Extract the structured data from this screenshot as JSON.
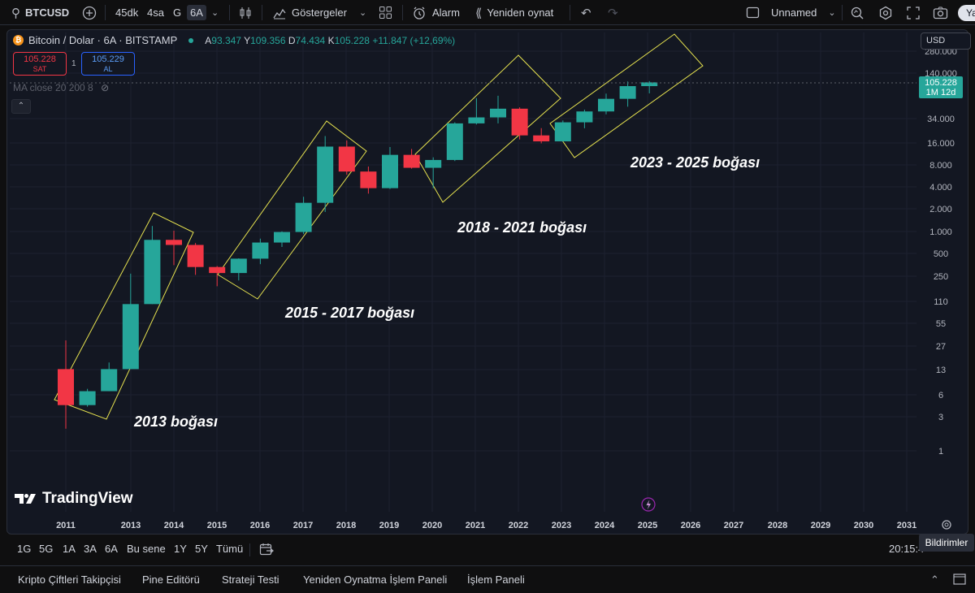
{
  "toolbar": {
    "symbol": "BTCUSD",
    "intervals": [
      "45dk",
      "4sa",
      "G",
      "6A"
    ],
    "active_interval": "6A",
    "indicators": "Göstergeler",
    "alarm": "Alarm",
    "replay": "Yeniden oynat",
    "layout_name": "Unnamed",
    "right_cut": "Ya"
  },
  "legend": {
    "title": "Bitcoin / Dolar · 6A · BITSTAMP",
    "open_label": "A",
    "open": "93.347",
    "high_label": "Y",
    "high": "109.356",
    "low_label": "D",
    "low": "74.434",
    "close_label": "K",
    "close": "105.228",
    "change": "+11.847 (+12,69%)",
    "sell_price": "105.228",
    "sell_label": "SAT",
    "spread": "1",
    "buy_price": "105.229",
    "buy_label": "AL",
    "ma": "MA close 20 200 8"
  },
  "price_scale": {
    "currency": "USD",
    "last_price": "105.228",
    "countdown": "1M 12d",
    "ticks": [
      "280.000",
      "140.000",
      "34.000",
      "16.000",
      "8.000",
      "4.000",
      "2.000",
      "1.000",
      "500",
      "250",
      "110",
      "55",
      "27",
      "13",
      "6",
      "3",
      "1"
    ]
  },
  "time_axis": [
    "2011",
    "2013",
    "2014",
    "2015",
    "2016",
    "2017",
    "2018",
    "2019",
    "2020",
    "2021",
    "2022",
    "2023",
    "2024",
    "2025",
    "2026",
    "2027",
    "2028",
    "2029",
    "2030",
    "2031"
  ],
  "annotations": {
    "bull_2013": "2013 boğası",
    "bull_2015": "2015 - 2017 boğası",
    "bull_2018": "2018 - 2021 boğası",
    "bull_2023": "2023 - 2025 boğası"
  },
  "brand": "TradingView",
  "range_bar": {
    "ranges": [
      "1G",
      "5G",
      "1A",
      "3A",
      "6A",
      "Bu sene",
      "1Y",
      "5Y",
      "Tümü"
    ],
    "clock": "20:15:4",
    "notifications_tip": "Bildirimler"
  },
  "bottom_tabs": [
    "Kripto Çiftleri Takipçisi",
    "Pine Editörü",
    "Strateji Testi",
    "Yeniden Oynatma İşlem Paneli",
    "İşlem Paneli"
  ],
  "colors": {
    "up": "#26a69a",
    "down": "#f23645",
    "box": "#e6e24f",
    "bg": "#131722"
  },
  "chart_data": {
    "type": "candlestick",
    "log_scale": true,
    "candles": [
      {
        "o": 13,
        "h": 32,
        "l": 2,
        "c": 4.2
      },
      {
        "o": 4.2,
        "h": 7,
        "l": 4,
        "c": 6.5
      },
      {
        "o": 6.5,
        "h": 16,
        "l": 6.5,
        "c": 13
      },
      {
        "o": 13,
        "h": 260,
        "l": 13,
        "c": 100
      },
      {
        "o": 100,
        "h": 1160,
        "l": 100,
        "c": 750
      },
      {
        "o": 750,
        "h": 1000,
        "l": 340,
        "c": 640
      },
      {
        "o": 640,
        "h": 680,
        "l": 250,
        "c": 320
      },
      {
        "o": 320,
        "h": 330,
        "l": 175,
        "c": 265
      },
      {
        "o": 265,
        "h": 420,
        "l": 210,
        "c": 416
      },
      {
        "o": 416,
        "h": 780,
        "l": 350,
        "c": 690
      },
      {
        "o": 690,
        "h": 980,
        "l": 600,
        "c": 960
      },
      {
        "o": 960,
        "h": 2900,
        "l": 900,
        "c": 2400
      },
      {
        "o": 2400,
        "h": 19500,
        "l": 1800,
        "c": 14000
      },
      {
        "o": 14000,
        "h": 17000,
        "l": 5800,
        "c": 6400
      },
      {
        "o": 6400,
        "h": 7500,
        "l": 3200,
        "c": 3800
      },
      {
        "o": 3800,
        "h": 13800,
        "l": 3700,
        "c": 10800
      },
      {
        "o": 10800,
        "h": 13000,
        "l": 7000,
        "c": 7200
      },
      {
        "o": 7200,
        "h": 10000,
        "l": 3800,
        "c": 9200
      },
      {
        "o": 9200,
        "h": 30000,
        "l": 8900,
        "c": 29000
      },
      {
        "o": 29000,
        "h": 64000,
        "l": 28000,
        "c": 35000
      },
      {
        "o": 35000,
        "h": 69000,
        "l": 29000,
        "c": 46000
      },
      {
        "o": 46000,
        "h": 48000,
        "l": 17500,
        "c": 19900
      },
      {
        "o": 19900,
        "h": 25000,
        "l": 15500,
        "c": 16500
      },
      {
        "o": 16500,
        "h": 31800,
        "l": 16400,
        "c": 30000
      },
      {
        "o": 30000,
        "h": 44700,
        "l": 24900,
        "c": 42200
      },
      {
        "o": 42200,
        "h": 73800,
        "l": 38500,
        "c": 62700
      },
      {
        "o": 62700,
        "h": 108000,
        "l": 49000,
        "c": 93400
      },
      {
        "o": 93400,
        "h": 109300,
        "l": 74400,
        "c": 105200
      }
    ]
  }
}
